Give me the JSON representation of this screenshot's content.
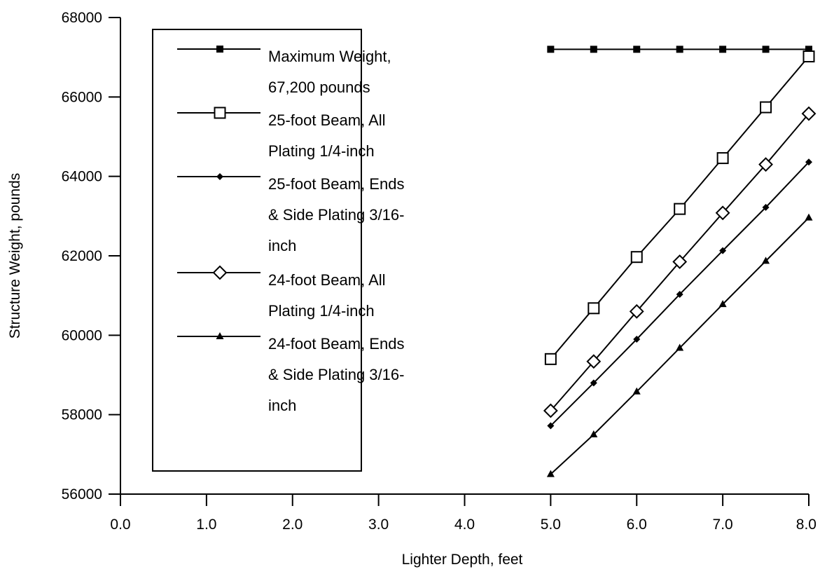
{
  "chart_data": {
    "type": "line",
    "title": "",
    "xlabel": "Lighter Depth, feet",
    "ylabel": "Structure Weight, pounds",
    "xlim": [
      0,
      8
    ],
    "ylim": [
      56000,
      68000
    ],
    "x_ticks": [
      "0.0",
      "1.0",
      "2.0",
      "3.0",
      "4.0",
      "5.0",
      "6.0",
      "7.0",
      "8.0"
    ],
    "y_ticks": [
      "56000",
      "58000",
      "60000",
      "62000",
      "64000",
      "66000",
      "68000"
    ],
    "grid": false,
    "legend_position": "upper-left",
    "x": [
      5.0,
      5.5,
      6.0,
      6.5,
      7.0,
      7.5,
      8.0
    ],
    "series": [
      {
        "name": "Maximum Weight, 67,200 pounds",
        "legend_lines": [
          "Maximum Weight,",
          "67,200 pounds"
        ],
        "marker": "filled-square",
        "values": [
          67200,
          67200,
          67200,
          67200,
          67200,
          67200,
          67200
        ]
      },
      {
        "name": "25-foot Beam, All Plating 1/4-inch",
        "legend_lines": [
          "25-foot Beam, All",
          "Plating 1/4-inch"
        ],
        "marker": "open-square",
        "values": [
          59400,
          60680,
          61970,
          63180,
          64460,
          65740,
          67020
        ]
      },
      {
        "name": "25-foot Beam, Ends & Side Plating 3/16-inch",
        "legend_lines": [
          "25-foot Beam, Ends",
          "& Side Plating 3/16-",
          "inch"
        ],
        "marker": "filled-diamond",
        "values": [
          57720,
          58800,
          59900,
          61030,
          62130,
          63220,
          64360
        ]
      },
      {
        "name": "24-foot Beam, All Plating 1/4-inch",
        "legend_lines": [
          "24-foot Beam, All",
          "Plating 1/4-inch"
        ],
        "marker": "open-diamond",
        "values": [
          58100,
          59340,
          60600,
          61850,
          63080,
          64300,
          65580
        ]
      },
      {
        "name": "24-foot Beam, Ends & Side Plating 3/16-inch",
        "legend_lines": [
          "24-foot Beam, Ends",
          "& Side Plating 3/16-",
          "inch"
        ],
        "marker": "filled-triangle",
        "values": [
          56500,
          57500,
          58580,
          59680,
          60780,
          61870,
          62960
        ]
      }
    ]
  }
}
